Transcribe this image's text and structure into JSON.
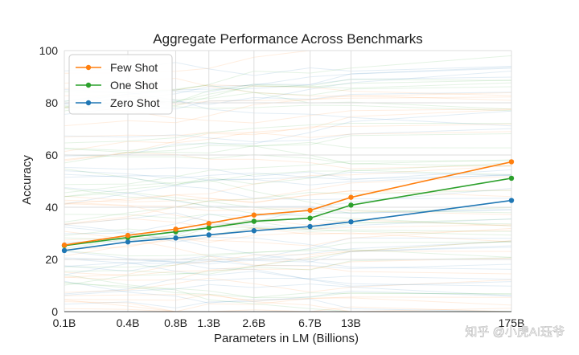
{
  "chart_data": {
    "type": "line",
    "title": "Aggregate Performance Across Benchmarks",
    "xlabel": "Parameters in LM (Billions)",
    "ylabel": "Accuracy",
    "categories": [
      "0.1B",
      "0.4B",
      "0.8B",
      "1.3B",
      "2.6B",
      "6.7B",
      "13B",
      "175B"
    ],
    "ylim": [
      0,
      100
    ],
    "yticks": [
      0,
      20,
      40,
      60,
      80,
      100
    ],
    "grid": true,
    "legend_position": "top-left",
    "series": [
      {
        "name": "Few Shot",
        "color": "#ff7f0e",
        "values": [
          25.5,
          29.2,
          31.6,
          33.8,
          37.0,
          38.8,
          43.8,
          57.4
        ]
      },
      {
        "name": "One Shot",
        "color": "#2ca02c",
        "values": [
          25.3,
          28.4,
          30.6,
          32.1,
          34.6,
          35.8,
          40.8,
          51.1
        ]
      },
      {
        "name": "Zero Shot",
        "color": "#1f77b4",
        "values": [
          23.4,
          26.7,
          28.2,
          29.4,
          31.0,
          32.6,
          34.4,
          42.6
        ]
      }
    ],
    "watermark": "知乎 @小虎AI珏爷"
  }
}
